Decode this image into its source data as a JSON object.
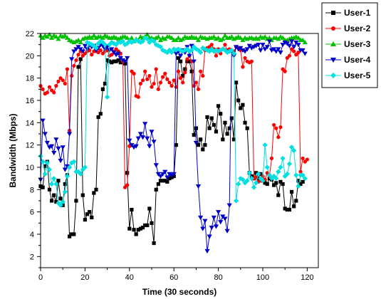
{
  "chart_data": {
    "type": "line",
    "xlabel": "Time (30 seconds)",
    "ylabel": "Bandwidth (Mbps)",
    "xlim": [
      0,
      125
    ],
    "ylim": [
      1,
      22
    ],
    "xticks": [
      0,
      20,
      40,
      60,
      80,
      100,
      120
    ],
    "yticks": [
      2,
      4,
      6,
      8,
      10,
      12,
      14,
      16,
      18,
      20,
      22
    ],
    "grid": false,
    "legend": "top-right-outside",
    "series": [
      {
        "name": "User-1",
        "color": "#000000",
        "marker": "square",
        "values": [
          8.3,
          8.2,
          10.1,
          10.5,
          8.0,
          7.0,
          7.5,
          6.9,
          8.8,
          7.2,
          6.6,
          8.5,
          9.3,
          3.8,
          4.0,
          4.0,
          7.0,
          19.0,
          19.7,
          7.5,
          5.3,
          5.8,
          6.0,
          5.5,
          7.7,
          8.0,
          14.5,
          14.8,
          17.0,
          17.5,
          19.6,
          19.5,
          19.4,
          19.5,
          19.5,
          19.6,
          19.4,
          19.4,
          19.3,
          9.5,
          4.5,
          6.2,
          4.4,
          4.0,
          4.4,
          4.5,
          4.6,
          4.8,
          4.8,
          6.3,
          5.0,
          3.2,
          8.0,
          8.5,
          8.8,
          8.8,
          8.8,
          8.7,
          9.0,
          9.1,
          9.2,
          12.0,
          19.8,
          19.5,
          18.2,
          18.8,
          19.5,
          19.5,
          18.6,
          12.9,
          13.5,
          12.0,
          12.5,
          11.6,
          12.0,
          14.5,
          13.5,
          14.4,
          13.8,
          13.2,
          15.5,
          14.8,
          12.5,
          14.0,
          13.0,
          13.5,
          14.4,
          12.5,
          17.6,
          16.0,
          15.3,
          15.6,
          14.0,
          13.5,
          9.5,
          9.2,
          9.0,
          9.5,
          9.0,
          9.4,
          8.8,
          8.6,
          8.5,
          9.0,
          8.9,
          8.4,
          8.6,
          7.5,
          8.7,
          8.5,
          6.3,
          6.2,
          6.2,
          7.8,
          6.5,
          7.0,
          8.8,
          8.5,
          8.7
        ]
      },
      {
        "name": "User-2",
        "color": "#ff0000",
        "marker": "circle",
        "values": [
          17.3,
          17.0,
          16.6,
          16.7,
          17.2,
          16.9,
          16.7,
          17.3,
          17.7,
          18.0,
          17.8,
          17.5,
          18.8,
          13.3,
          18.2,
          19.1,
          19.6,
          20.1,
          20.4,
          20.0,
          20.2,
          20.4,
          20.5,
          20.1,
          20.4,
          20.4,
          20.3,
          20.5,
          20.2,
          20.4,
          20.5,
          20.0,
          20.1,
          20.4,
          20.6,
          20.4,
          20.2,
          19.5,
          8.2,
          8.4,
          11.9,
          18.6,
          18.4,
          16.4,
          16.3,
          17.5,
          17.8,
          18.6,
          17.9,
          18.2,
          17.2,
          17.5,
          18.8,
          17.0,
          17.6,
          18.1,
          18.4,
          17.9,
          17.6,
          17.3,
          17.8,
          17.2,
          18.6,
          18.0,
          17.6,
          18.5,
          19.7,
          20.0,
          19.5,
          17.3,
          17.6,
          17.0,
          18.6,
          18.2,
          20.5,
          20.7,
          20.8,
          21.0,
          20.6,
          20.0,
          20.6,
          20.2,
          20.6,
          21.0,
          20.5,
          20.6,
          20.4,
          20.4,
          20.8,
          20.7,
          20.5,
          19.0,
          19.8,
          19.5,
          19.4,
          19.5,
          9.0,
          9.1,
          8.7,
          8.8,
          9.2,
          8.9,
          9.5,
          9.2,
          10.8,
          13.8,
          13.5,
          12.7,
          13.6,
          18.8,
          18.6,
          19.8,
          20.0,
          20.6,
          20.4,
          20.1,
          20.3,
          9.6,
          10.8,
          10.5,
          10.7
        ]
      },
      {
        "name": "User-3",
        "color": "#00c000",
        "marker": "triangle-up",
        "values": [
          21.8,
          21.6,
          21.8,
          21.7,
          21.9,
          21.6,
          21.8,
          21.7,
          21.5,
          21.8,
          21.7,
          21.8,
          21.6,
          21.4,
          21.3,
          21.2,
          21.3,
          21.4,
          21.2,
          21.5,
          21.6,
          21.6,
          21.7,
          21.6,
          21.8,
          21.6,
          21.7,
          21.7,
          21.6,
          21.8,
          21.7,
          21.6,
          21.6,
          21.7,
          21.6,
          21.5,
          21.6,
          21.7,
          21.7,
          21.6,
          21.4,
          21.6,
          21.3,
          21.5,
          21.4,
          21.7,
          21.6,
          21.7,
          21.9,
          21.6,
          21.6,
          21.5,
          21.6,
          21.7,
          21.4,
          21.6,
          21.5,
          21.7,
          21.7,
          21.6,
          21.4,
          21.4,
          21.6,
          21.4,
          21.5,
          21.7,
          21.6,
          21.6,
          21.7,
          21.6,
          21.6,
          21.4,
          21.7,
          21.6,
          21.6,
          21.5,
          21.6,
          21.6,
          21.7,
          21.5,
          21.6,
          21.4,
          21.5,
          21.8,
          21.6,
          21.6,
          21.7,
          21.5,
          21.6,
          21.7,
          21.6,
          21.4,
          21.6,
          21.5,
          21.6,
          21.6,
          21.5,
          21.6,
          21.5,
          21.7,
          21.6,
          21.7,
          21.5,
          21.6,
          21.4,
          21.6,
          21.6,
          21.5,
          21.7,
          21.6,
          21.4,
          21.4,
          21.5,
          21.6,
          21.6,
          21.7,
          21.6,
          21.4,
          21.4,
          21.2
        ]
      },
      {
        "name": "User-4",
        "color": "#0000c8",
        "marker": "triangle-down",
        "values": [
          8.9,
          14.2,
          13.0,
          12.2,
          11.8,
          11.9,
          11.3,
          12.5,
          11.7,
          10.6,
          11.8,
          9.8,
          10.1,
          13.0,
          19.7,
          20.4,
          20.6,
          20.8,
          20.6,
          20.4,
          20.9,
          20.6,
          21.0,
          20.8,
          20.9,
          20.5,
          20.7,
          21.0,
          20.9,
          20.6,
          20.8,
          20.5,
          20.6,
          20.3,
          20.1,
          20.2,
          19.8,
          19.6,
          19.5,
          19.8,
          12.4,
          12.0,
          11.8,
          11.9,
          12.6,
          13.0,
          12.7,
          13.9,
          12.6,
          11.9,
          13.2,
          12.3,
          10.2,
          9.4,
          9.2,
          9.4,
          9.6,
          9.1,
          9.4,
          9.3,
          9.4,
          20.2,
          20.4,
          20.0,
          20.5,
          20.3,
          20.8,
          20.0,
          20.9,
          19.5,
          12.2,
          8.3,
          5.5,
          4.5,
          5.2,
          2.5,
          3.8,
          4.6,
          5.5,
          4.7,
          6.0,
          5.1,
          5.6,
          5.4,
          4.3,
          6.6,
          20.4,
          20.0,
          20.8,
          20.6,
          20.7,
          20.5,
          20.4,
          20.6,
          20.9,
          20.7,
          20.8,
          20.9,
          21.0,
          20.5,
          21.0,
          20.6,
          20.8,
          21.3,
          20.5,
          20.6,
          20.4,
          20.6,
          20.3,
          21.0,
          21.2,
          21.1,
          20.9,
          21.3,
          20.8,
          21.2,
          21.0,
          20.5,
          20.5,
          20.2
        ]
      },
      {
        "name": "User-5",
        "color": "#00e0e0",
        "marker": "diamond",
        "values": [
          11.0,
          10.5,
          9.4,
          10.4,
          9.8,
          8.5,
          9.0,
          8.5,
          6.8,
          6.6,
          6.9,
          7.8,
          9.2,
          10.0,
          10.4,
          10.5,
          9.6,
          9.6,
          9.4,
          9.8,
          10.0,
          21.2,
          21.1,
          21.0,
          20.9,
          20.7,
          21.1,
          21.3,
          21.2,
          21.0,
          16.3,
          21.0,
          21.2,
          21.1,
          21.0,
          21.2,
          21.2,
          21.3,
          21.0,
          21.1,
          21.3,
          21.2,
          21.3,
          21.4,
          21.3,
          21.2,
          21.3,
          21.6,
          21.5,
          21.2,
          21.4,
          21.3,
          21.0,
          20.9,
          20.8,
          20.5,
          20.4,
          20.3,
          20.5,
          20.3,
          20.6,
          20.5,
          20.6,
          20.5,
          20.4,
          20.5,
          20.6,
          20.4,
          20.5,
          20.8,
          20.6,
          20.5,
          20.3,
          20.7,
          20.6,
          20.5,
          20.4,
          20.6,
          20.4,
          20.5,
          20.4,
          20.5,
          20.6,
          20.5,
          20.3,
          20.4,
          20.5,
          20.2,
          7.0,
          8.5,
          9.0,
          8.9,
          8.6,
          8.8,
          9.5,
          9.0,
          8.2,
          8.6,
          9.4,
          9.0,
          8.8,
          12.0,
          10.0,
          9.3,
          9.0,
          9.2,
          9.0,
          9.6,
          10.0,
          10.8,
          9.2,
          9.4,
          10.3,
          11.8,
          11.5,
          9.3,
          8.3,
          9.3,
          9.3,
          9.0
        ]
      }
    ]
  }
}
